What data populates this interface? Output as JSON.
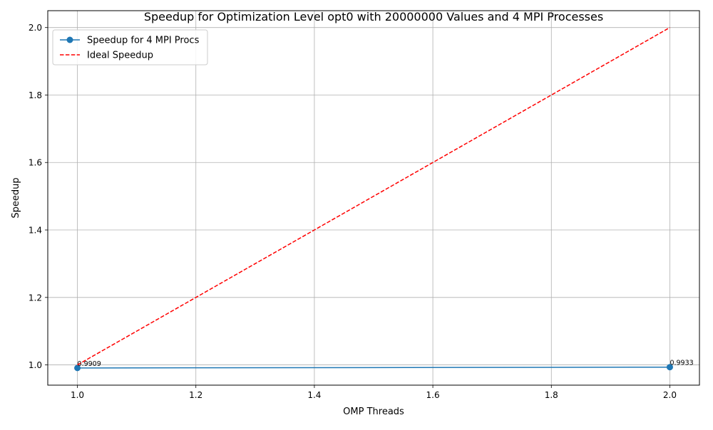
{
  "chart_data": {
    "type": "line",
    "title": "Speedup for Optimization Level opt0 with 20000000 Values and 4 MPI Processes",
    "xlabel": "OMP Threads",
    "ylabel": "Speedup",
    "xlim": [
      0.95,
      2.05
    ],
    "ylim": [
      0.94,
      2.05
    ],
    "x_ticks": [
      1.0,
      1.2,
      1.4,
      1.6,
      1.8,
      2.0
    ],
    "x_tick_labels": [
      "1.0",
      "1.2",
      "1.4",
      "1.6",
      "1.8",
      "2.0"
    ],
    "y_ticks": [
      1.0,
      1.2,
      1.4,
      1.6,
      1.8,
      2.0
    ],
    "y_tick_labels": [
      "1.0",
      "1.2",
      "1.4",
      "1.6",
      "1.8",
      "2.0"
    ],
    "grid": true,
    "legend_position": "upper-left",
    "series": [
      {
        "name": "Speedup for 4 MPI Procs",
        "x": [
          1,
          2
        ],
        "y": [
          0.9909,
          0.9933
        ],
        "color": "#1f77b4",
        "style": "solid",
        "marker": "circle",
        "point_labels": [
          "0.9909",
          "0.9933"
        ]
      },
      {
        "name": "Ideal Speedup",
        "x": [
          1,
          2
        ],
        "y": [
          1,
          2
        ],
        "color": "#ff0000",
        "style": "dashed",
        "marker": "none"
      }
    ]
  }
}
